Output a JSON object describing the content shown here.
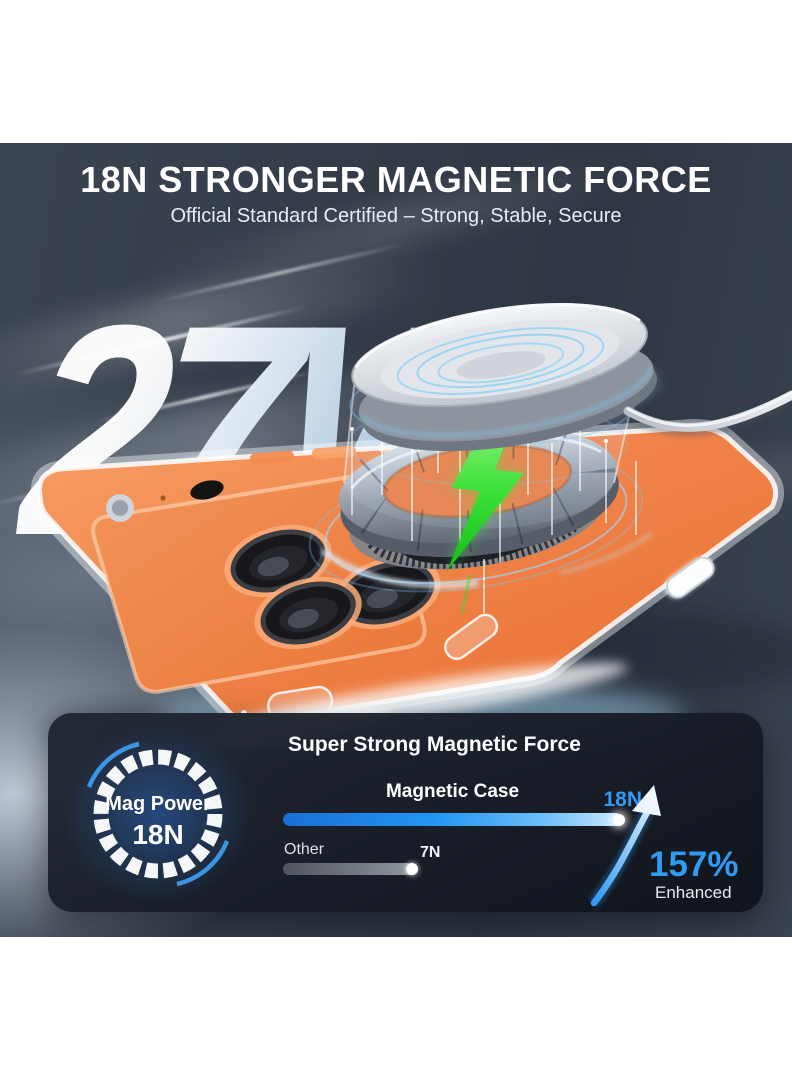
{
  "header": {
    "title": "18N STRONGER MAGNETIC FORCE",
    "subtitle": "Official Standard Certified – Strong, Stable, Secure"
  },
  "hero": {
    "watt_mark": "27W"
  },
  "mag_badge": {
    "label": "Mag Power",
    "value": "18N"
  },
  "comparison": {
    "heading": "Super Strong Magnetic Force",
    "rows": [
      {
        "label": "Magnetic Case",
        "value_label": "18N",
        "value": 18
      },
      {
        "label": "Other",
        "value_label": "7N",
        "value": 7
      }
    ],
    "enhancement_percent": "157%",
    "enhancement_caption": "Enhanced"
  },
  "colors": {
    "accent_blue": "#2F9BF2",
    "bolt_green": "#1CC71A",
    "case_orange": "#F08246",
    "panel_bg": "#161B24"
  },
  "chart_data": {
    "type": "bar",
    "orientation": "horizontal",
    "title": "Super Strong Magnetic Force",
    "categories": [
      "Magnetic Case",
      "Other"
    ],
    "values": [
      18,
      7
    ],
    "unit": "N",
    "value_labels": [
      "18N",
      "7N"
    ],
    "annotation": "157% Enhanced",
    "legend": false,
    "grid": false
  }
}
